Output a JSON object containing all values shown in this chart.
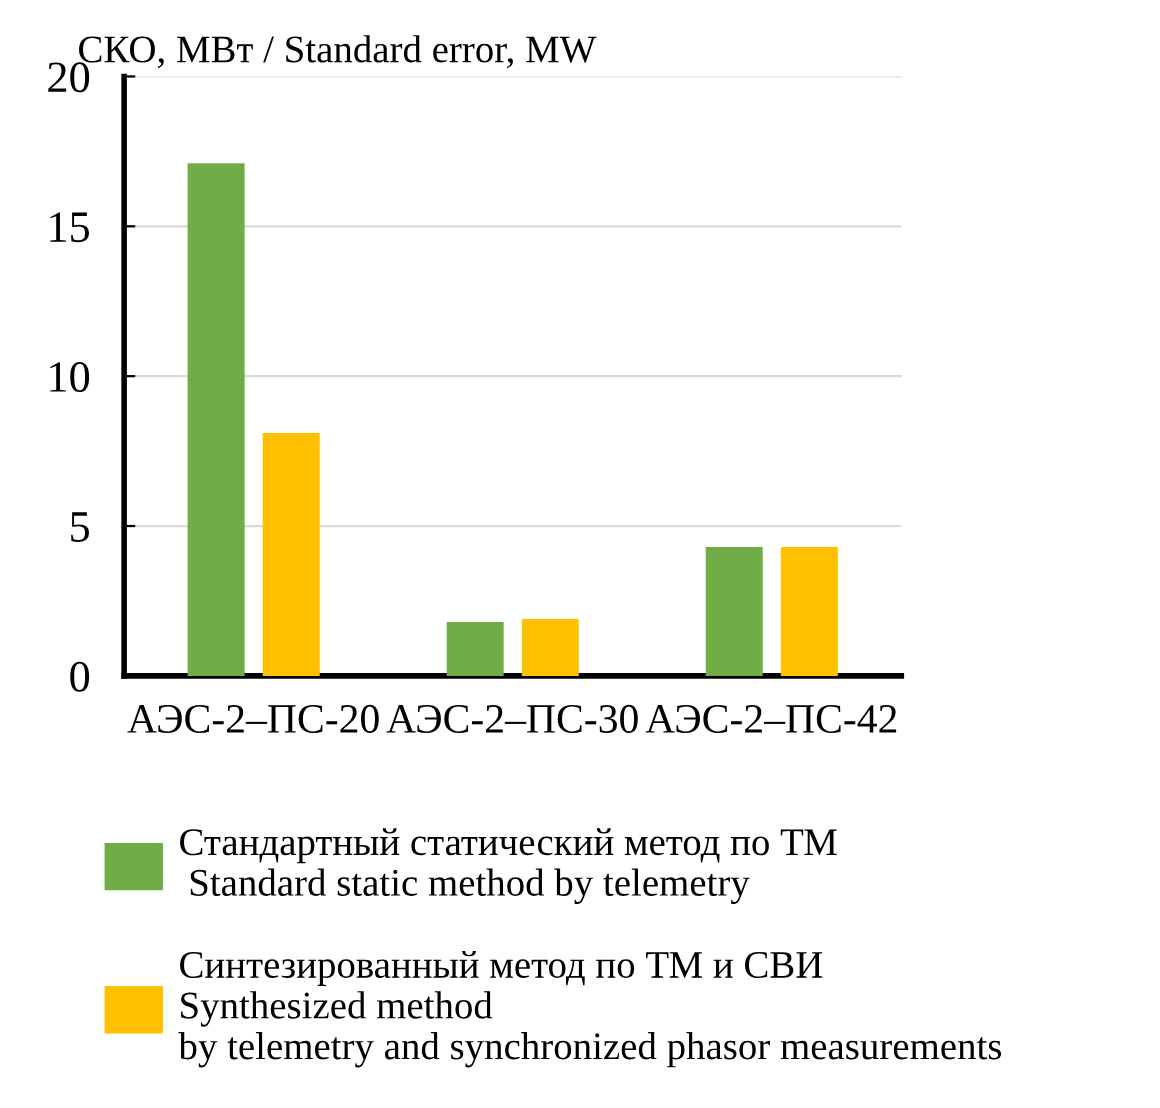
{
  "chart_data": {
    "type": "bar",
    "ylabel": "СКО, МВт / Standard error, MW",
    "categories": [
      "АЭС-2–ПС-20",
      "АЭС-2–ПС-30",
      "АЭС-2–ПС-42"
    ],
    "series": [
      {
        "name": "Стандартный статический метод по ТМ\n Standard static method by telemetry",
        "color": "#70ad47",
        "values": [
          17.1,
          1.8,
          4.3
        ]
      },
      {
        "name": "Синтезированный метод по ТМ и СВИ\nSynthesized method\nby telemetry and synchronized phasor measurements",
        "color": "#ffc000",
        "values": [
          8.1,
          1.9,
          4.3
        ]
      }
    ],
    "ylim": [
      0,
      20
    ],
    "yticks": [
      0,
      5,
      10,
      15,
      20
    ],
    "grid": "y",
    "legend": "bottom"
  }
}
